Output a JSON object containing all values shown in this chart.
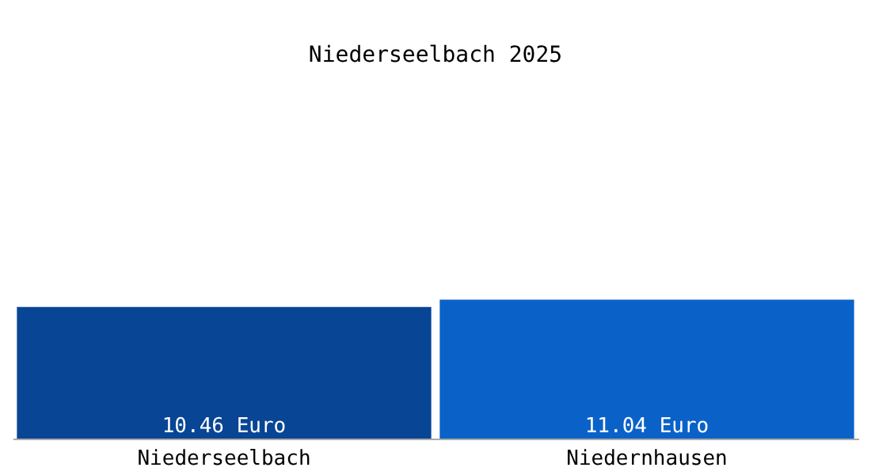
{
  "chart_data": {
    "type": "bar",
    "title": "Niederseelbach 2025",
    "categories": [
      "Niederseelbach",
      "Niedernhausen"
    ],
    "values": [
      10.46,
      11.04
    ],
    "colors": [
      "#084594",
      "#0a62c9"
    ],
    "value_labels": [
      "10.46 Euro",
      "11.04 Euro"
    ]
  }
}
